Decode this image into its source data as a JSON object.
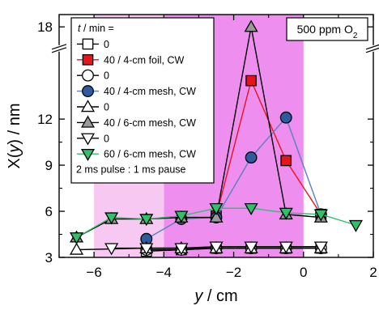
{
  "chart_data": {
    "type": "line",
    "annotation": "500 ppm O",
    "annotation_sub": "2",
    "xlabel": {
      "ital": "y",
      "rest": " / cm"
    },
    "ylabel": {
      "pre": "X(",
      "ital": "y",
      "post": ") / nm"
    },
    "xlim": [
      -7,
      2
    ],
    "ylim": [
      3,
      18.8
    ],
    "y_axis_break": {
      "at": 16.6,
      "note": "axis is broken between 12 and 18"
    },
    "xticks": [
      -6,
      -4,
      -2,
      0,
      2
    ],
    "xtick_labels": [
      "−6",
      "−4",
      "−2",
      "0",
      "2"
    ],
    "yticks": [
      3,
      6,
      9,
      12,
      18
    ],
    "ytick_labels": [
      "3",
      "6",
      "9",
      "12",
      "18"
    ],
    "shaded_regions": [
      {
        "from": -6,
        "to": -4,
        "color": "#f6c8f2"
      },
      {
        "from": -4,
        "to": 0,
        "color": "#ee8ff0"
      }
    ],
    "legend": {
      "header_ital": "t",
      "header_rest": " / min =",
      "footer": "2 ms pulse : 1 ms pause"
    },
    "series": [
      {
        "name": "0",
        "marker": "square",
        "fill": "#ffffff",
        "line": "#000000",
        "x": [
          -4.5,
          -3.5,
          -2.5,
          -1.5,
          -0.5,
          0.5
        ],
        "y": [
          3.4,
          3.5,
          3.6,
          3.6,
          3.6,
          3.6
        ]
      },
      {
        "name": "40 / 4-cm foil, CW",
        "marker": "square",
        "fill": "#e8141b",
        "line": "#e8141b",
        "x": [
          -2.5,
          -1.5,
          -0.5,
          0.5
        ],
        "y": [
          5.7,
          14.5,
          9.3,
          5.8
        ]
      },
      {
        "name": "0",
        "marker": "circle",
        "fill": "#ffffff",
        "line": "#000000",
        "x": [
          -4.5,
          -3.5,
          -2.5,
          -1.5,
          -0.5,
          0.5
        ],
        "y": [
          3.5,
          3.5,
          3.6,
          3.6,
          3.6,
          3.6
        ]
      },
      {
        "name": "40 / 4-cm mesh, CW",
        "marker": "circle",
        "fill": "#2e5aa0",
        "line": "#5a7ec0",
        "x": [
          -4.5,
          -3.5,
          -2.5,
          -1.5,
          -0.5,
          0.5
        ],
        "y": [
          4.2,
          5.5,
          5.6,
          9.5,
          12.1,
          5.8
        ]
      },
      {
        "name": "0",
        "marker": "triangle-up",
        "fill": "#ffffff",
        "line": "#000000",
        "x": [
          -6.5,
          -4.5,
          -3.5,
          -2.5,
          -1.5,
          -0.5,
          0.5
        ],
        "y": [
          3.5,
          3.6,
          3.6,
          3.6,
          3.6,
          3.6,
          3.6
        ]
      },
      {
        "name": "40 / 6-cm mesh, CW",
        "marker": "triangle-up",
        "fill": "#9a9a9a",
        "line": "#000000",
        "x": [
          -6.5,
          -5.5,
          -4.5,
          -3.5,
          -2.5,
          -1.5,
          -0.5,
          0.5
        ],
        "y": [
          4.3,
          5.5,
          5.5,
          5.6,
          5.6,
          18,
          5.8,
          5.6
        ]
      },
      {
        "name": "0",
        "marker": "triangle-down",
        "fill": "#ffffff",
        "line": "#000000",
        "x": [
          -5.5,
          -4.5,
          -3.5,
          -2.5,
          -1.5,
          -0.5,
          0.5
        ],
        "y": [
          3.6,
          3.6,
          3.6,
          3.7,
          3.7,
          3.7,
          3.7
        ]
      },
      {
        "name": "60 / 6-cm mesh, CW",
        "marker": "triangle-down",
        "fill": "#2fc06a",
        "line": "#2fc06a",
        "x": [
          -6.5,
          -5.5,
          -4.5,
          -3.5,
          -2.5,
          -1.5,
          -0.5,
          0.5,
          1.5
        ],
        "y": [
          4.3,
          5.6,
          5.5,
          5.7,
          6.2,
          6.2,
          5.9,
          5.8,
          5.1
        ]
      }
    ]
  }
}
